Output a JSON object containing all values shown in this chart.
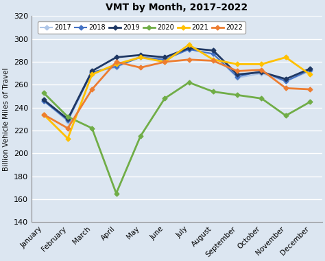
{
  "title": "VMT by Month, 2017–2022",
  "ylabel": "Billion Vehicle Miles of Travel",
  "months": [
    "January",
    "February",
    "March",
    "April",
    "May",
    "June",
    "July",
    "August",
    "September",
    "October",
    "November",
    "December"
  ],
  "ylim": [
    140,
    320
  ],
  "yticks": [
    140,
    160,
    180,
    200,
    220,
    240,
    260,
    280,
    300,
    320
  ],
  "series": {
    "2017": {
      "values": [
        246,
        228,
        271,
        275,
        285,
        282,
        291,
        287,
        266,
        270,
        263,
        272
      ],
      "color": "#aec6e8",
      "marker": "D",
      "linewidth": 1.5,
      "markersize": 3.5,
      "zorder": 2
    },
    "2018": {
      "values": [
        246,
        229,
        271,
        276,
        284,
        282,
        291,
        287,
        267,
        272,
        263,
        273
      ],
      "color": "#4472c4",
      "marker": "D",
      "linewidth": 1.5,
      "markersize": 3.5,
      "zorder": 3
    },
    "2019": {
      "values": [
        247,
        230,
        272,
        284,
        286,
        284,
        292,
        290,
        269,
        271,
        265,
        274
      ],
      "color": "#1f3864",
      "marker": "D",
      "linewidth": 2.0,
      "markersize": 3.5,
      "zorder": 4
    },
    "2020": {
      "values": [
        253,
        232,
        222,
        165,
        215,
        248,
        262,
        254,
        251,
        248,
        233,
        245
      ],
      "color": "#70ad47",
      "marker": "D",
      "linewidth": 2.0,
      "markersize": 3.5,
      "zorder": 5
    },
    "2021": {
      "values": [
        234,
        213,
        269,
        278,
        284,
        280,
        295,
        282,
        278,
        278,
        284,
        269
      ],
      "color": "#ffc000",
      "marker": "D",
      "linewidth": 2.0,
      "markersize": 3.5,
      "zorder": 6
    },
    "2022": {
      "values": [
        234,
        222,
        256,
        280,
        275,
        280,
        282,
        281,
        272,
        273,
        257,
        256
      ],
      "color": "#ed7d31",
      "marker": "D",
      "linewidth": 2.0,
      "markersize": 3.5,
      "zorder": 7
    }
  },
  "legend_order": [
    "2017",
    "2018",
    "2019",
    "2020",
    "2021",
    "2022"
  ],
  "fig_background": "#dce6f1",
  "plot_background": "#dce6f1",
  "grid_color": "#ffffff"
}
